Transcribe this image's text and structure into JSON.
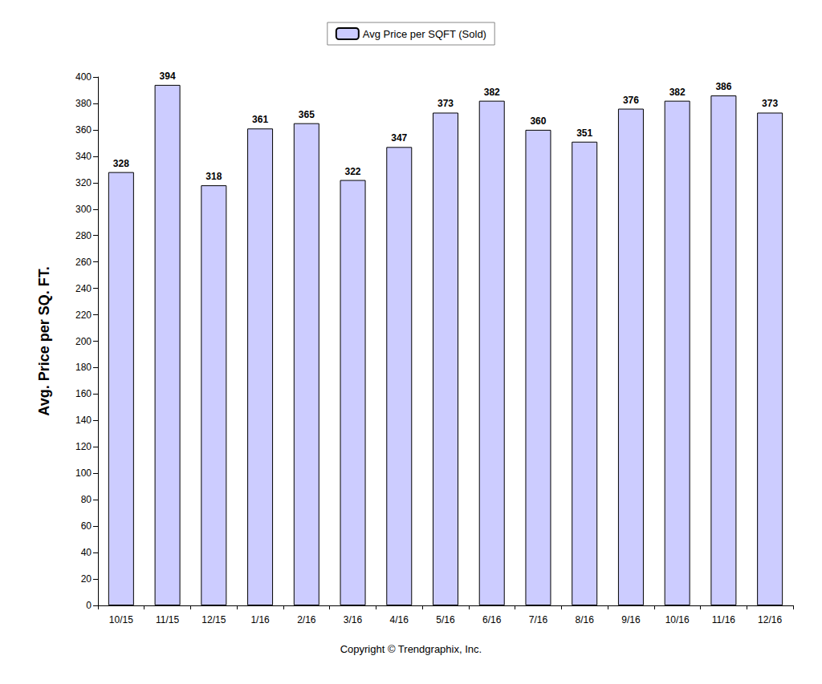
{
  "chart_data": {
    "type": "bar",
    "categories": [
      "10/15",
      "11/15",
      "12/15",
      "1/16",
      "2/16",
      "3/16",
      "4/16",
      "5/16",
      "6/16",
      "7/16",
      "8/16",
      "9/16",
      "10/16",
      "11/16",
      "12/16"
    ],
    "series": [
      {
        "name": "Avg Price per SQFT (Sold)",
        "color": "#ccccff",
        "values": [
          328,
          394,
          318,
          361,
          365,
          322,
          347,
          373,
          382,
          360,
          351,
          376,
          382,
          386,
          373
        ]
      }
    ],
    "y_label": "Avg. Price per SQ. FT.",
    "annotations": [
      "Copyright © Trendgraphix, Inc."
    ],
    "ylim": [
      0,
      400
    ],
    "yticks": [
      0,
      20,
      40,
      60,
      80,
      100,
      120,
      140,
      160,
      180,
      200,
      220,
      240,
      260,
      280,
      300,
      320,
      340,
      360,
      380,
      400
    ],
    "grid": false,
    "legend": "top",
    "data_labels": true
  }
}
